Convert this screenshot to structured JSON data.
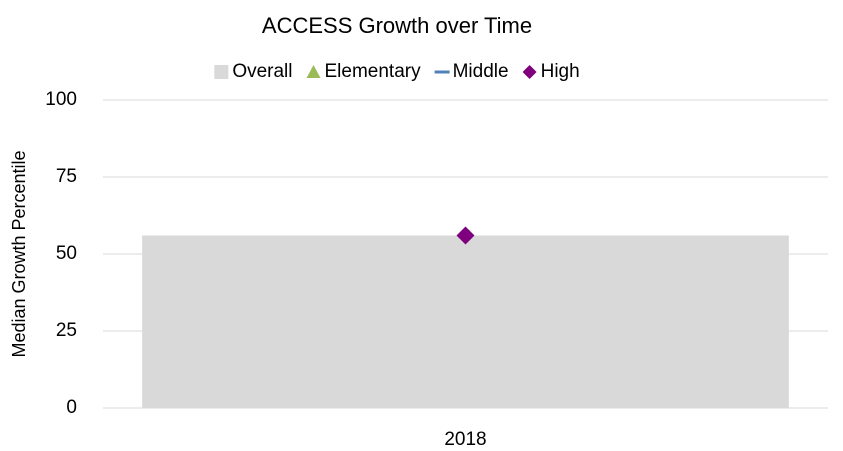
{
  "chart_data": {
    "type": "bar",
    "title": "ACCESS Growth over Time",
    "y_label": "Median Growth Percentile",
    "categories": [
      "2018"
    ],
    "series": [
      {
        "name": "Overall",
        "color": "#d9d9d9",
        "marker": "square",
        "values": [
          56
        ]
      },
      {
        "name": "Elementary",
        "color": "#9bbb59",
        "marker": "triangle",
        "values": [
          null
        ]
      },
      {
        "name": "Middle",
        "color": "#4f81bd",
        "marker": "line",
        "values": [
          null
        ]
      },
      {
        "name": "High",
        "color": "#7f007f",
        "marker": "diamond",
        "values": [
          56
        ]
      }
    ],
    "ylim": [
      0,
      100
    ],
    "yticks": [
      0,
      25,
      50,
      75,
      100
    ],
    "grid": true,
    "legend": "top"
  }
}
